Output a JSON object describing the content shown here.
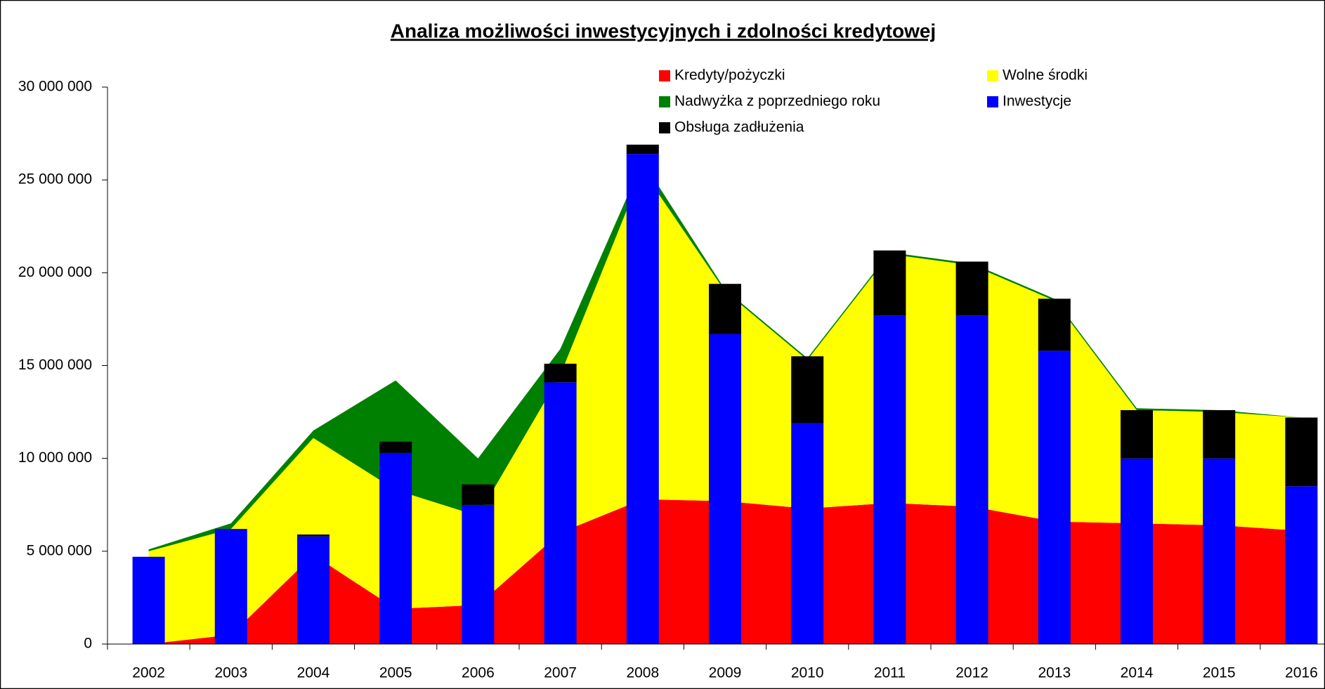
{
  "chart_data": {
    "type": "bar",
    "title": "Analiza możliwości inwestycyjnych i zdolności kredytowej",
    "categories": [
      "2002",
      "2003",
      "2004",
      "2005",
      "2006",
      "2007",
      "2008",
      "2009",
      "2010",
      "2011",
      "2012",
      "2013",
      "2014",
      "2015",
      "2016"
    ],
    "series": [
      {
        "name": "Kredyty/pożyczki",
        "type": "area",
        "color": "#ff0000",
        "values": [
          0,
          500000,
          4800000,
          1900000,
          2100000,
          6000000,
          7800000,
          7700000,
          7300000,
          7600000,
          7400000,
          6600000,
          6500000,
          6400000,
          6100000
        ]
      },
      {
        "name": "Wolne środki",
        "type": "area",
        "color": "#ffff00",
        "values": [
          5000000,
          5700000,
          6300000,
          6400000,
          4800000,
          8500000,
          17700000,
          11300000,
          8000000,
          13400000,
          13000000,
          11900000,
          6100000,
          6100000,
          6100000
        ]
      },
      {
        "name": "Nadwyżka z poprzedniego roku",
        "type": "area",
        "color": "#008000",
        "values": [
          100000,
          300000,
          400000,
          5900000,
          3100000,
          1400000,
          500000,
          100000,
          100000,
          100000,
          100000,
          100000,
          100000,
          100000,
          0
        ]
      },
      {
        "name": "Inwestycje",
        "type": "bar",
        "color": "#0000ff",
        "values": [
          4700000,
          6200000,
          5800000,
          10300000,
          7500000,
          14100000,
          26400000,
          16700000,
          11900000,
          17700000,
          17700000,
          15800000,
          10000000,
          10000000,
          8500000
        ]
      },
      {
        "name": "Obsługa zadłużenia",
        "type": "bar",
        "color": "#000000",
        "values": [
          0,
          0,
          100000,
          600000,
          1100000,
          1000000,
          500000,
          2700000,
          3600000,
          3500000,
          2900000,
          2800000,
          2600000,
          2600000,
          3700000
        ]
      }
    ],
    "ylim": [
      0,
      30000000
    ],
    "yticks": [
      0,
      {
        "value": 5000000,
        "label": "5 000 000"
      },
      {
        "value": 10000000,
        "label": "10 000 000"
      },
      {
        "value": 15000000,
        "label": "15 000 000"
      },
      {
        "value": 20000000,
        "label": "20 000 000"
      },
      {
        "value": 25000000,
        "label": "25 000 000"
      },
      {
        "value": 30000000,
        "label": "30 000 000"
      }
    ],
    "grid": false,
    "legend": "top-right"
  }
}
